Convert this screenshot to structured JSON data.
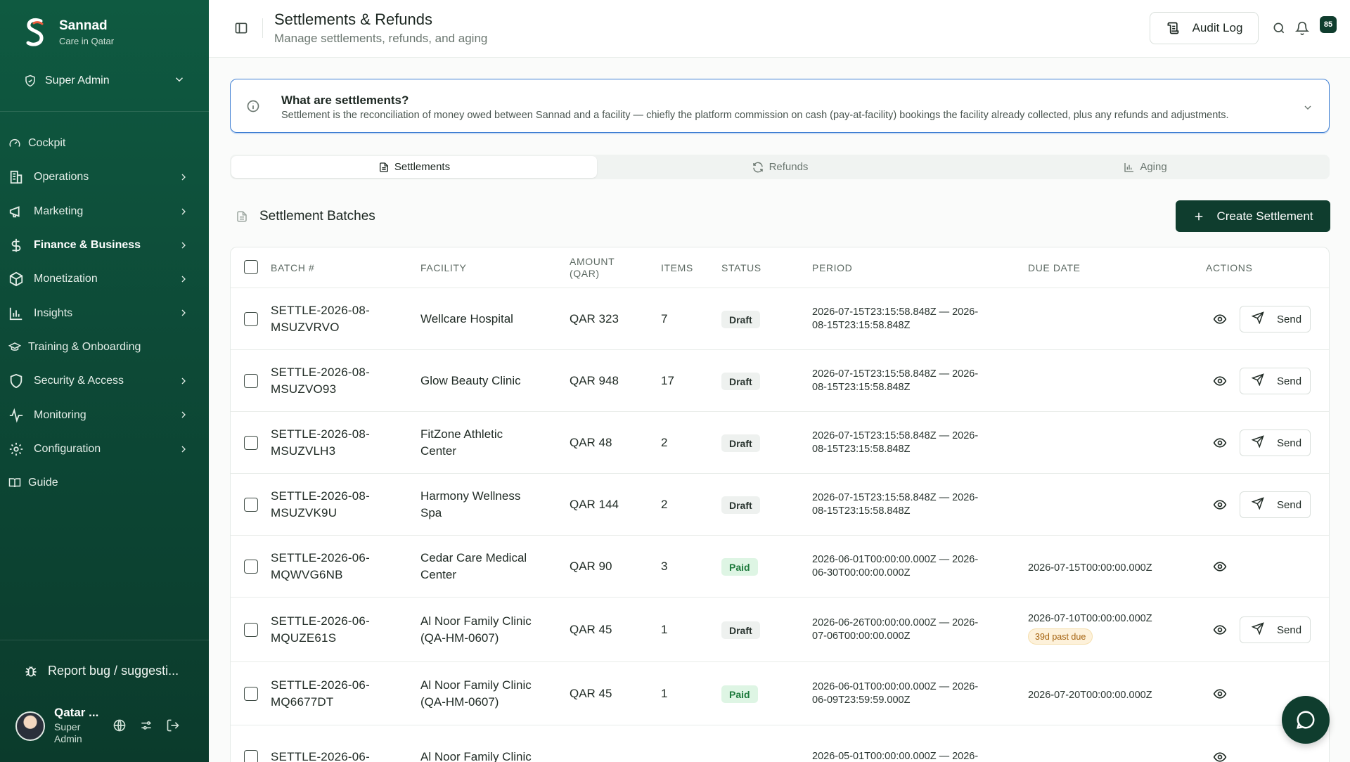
{
  "brand": {
    "name": "Sannad",
    "subtitle": "Care in Qatar"
  },
  "role": {
    "label": "Super Admin"
  },
  "nav": [
    {
      "label": "Cockpit",
      "icon": "gauge-icon",
      "chevron": false
    },
    {
      "label": "Operations",
      "icon": "building-icon",
      "chevron": true
    },
    {
      "label": "Marketing",
      "icon": "megaphone-icon",
      "chevron": true
    },
    {
      "label": "Finance & Business",
      "icon": "dollar-icon",
      "chevron": true,
      "active": true
    },
    {
      "label": "Monetization",
      "icon": "package-icon",
      "chevron": true
    },
    {
      "label": "Insights",
      "icon": "bar-chart-icon",
      "chevron": true
    },
    {
      "label": "Training & Onboarding",
      "icon": "graduation-cap-icon",
      "chevron": false
    },
    {
      "label": "Security & Access",
      "icon": "shield-icon",
      "chevron": true
    },
    {
      "label": "Monitoring",
      "icon": "activity-icon",
      "chevron": true
    },
    {
      "label": "Configuration",
      "icon": "gear-icon",
      "chevron": true
    },
    {
      "label": "Guide",
      "icon": "book-icon",
      "chevron": false
    }
  ],
  "report": {
    "label": "Report bug / suggesti..."
  },
  "user": {
    "name": "Qatar ...",
    "role": "Super Admin"
  },
  "header": {
    "title": "Settlements & Refunds",
    "subtitle": "Manage settlements, refunds, and aging",
    "audit_label": "Audit Log",
    "notification_count": "85"
  },
  "info": {
    "title": "What are settlements?",
    "text": "Settlement is the reconciliation of money owed between Sannad and a facility — chiefly the platform commission on cash (pay-at-facility) bookings the facility already collected, plus any refunds and adjustments."
  },
  "tabs": [
    {
      "label": "Settlements",
      "icon": "file-icon",
      "active": true
    },
    {
      "label": "Refunds",
      "icon": "refresh-icon",
      "active": false
    },
    {
      "label": "Aging",
      "icon": "bar-chart-icon",
      "active": false
    }
  ],
  "section": {
    "title": "Settlement Batches",
    "create_label": "Create Settlement"
  },
  "table": {
    "columns": {
      "batch": "BATCH #",
      "facility": "FACILITY",
      "amount_l1": "AMOUNT",
      "amount_l2": "(QAR)",
      "items": "ITEMS",
      "status": "STATUS",
      "period": "PERIOD",
      "due_date": "DUE DATE",
      "actions": "ACTIONS"
    },
    "send_label": "Send",
    "rows": [
      {
        "batch_l1": "SETTLE-2026-08-",
        "batch_l2": "MSUZVRVO",
        "fac_l1": "Wellcare Hospital",
        "fac_l2": "",
        "amount": "QAR 323",
        "items": "7",
        "status": "Draft",
        "period_l1": "2026-07-15T23:15:58.848Z — 2026-",
        "period_l2": "08-15T23:15:58.848Z",
        "due": "",
        "past_due": "",
        "send": true
      },
      {
        "batch_l1": "SETTLE-2026-08-",
        "batch_l2": "MSUZVO93",
        "fac_l1": "Glow Beauty Clinic",
        "fac_l2": "",
        "amount": "QAR 948",
        "items": "17",
        "status": "Draft",
        "period_l1": "2026-07-15T23:15:58.848Z — 2026-",
        "period_l2": "08-15T23:15:58.848Z",
        "due": "",
        "past_due": "",
        "send": true
      },
      {
        "batch_l1": "SETTLE-2026-08-",
        "batch_l2": "MSUZVLH3",
        "fac_l1": "FitZone Athletic",
        "fac_l2": "Center",
        "amount": "QAR 48",
        "items": "2",
        "status": "Draft",
        "period_l1": "2026-07-15T23:15:58.848Z — 2026-",
        "period_l2": "08-15T23:15:58.848Z",
        "due": "",
        "past_due": "",
        "send": true
      },
      {
        "batch_l1": "SETTLE-2026-08-",
        "batch_l2": "MSUZVK9U",
        "fac_l1": "Harmony Wellness",
        "fac_l2": "Spa",
        "amount": "QAR 144",
        "items": "2",
        "status": "Draft",
        "period_l1": "2026-07-15T23:15:58.848Z — 2026-",
        "period_l2": "08-15T23:15:58.848Z",
        "due": "",
        "past_due": "",
        "send": true
      },
      {
        "batch_l1": "SETTLE-2026-06-",
        "batch_l2": "MQWVG6NB",
        "fac_l1": "Cedar Care Medical",
        "fac_l2": "Center",
        "amount": "QAR 90",
        "items": "3",
        "status": "Paid",
        "period_l1": "2026-06-01T00:00:00.000Z — 2026-",
        "period_l2": "06-30T00:00:00.000Z",
        "due": "2026-07-15T00:00:00.000Z",
        "past_due": "",
        "send": false
      },
      {
        "batch_l1": "SETTLE-2026-06-",
        "batch_l2": "MQUZE61S",
        "fac_l1": "Al Noor Family Clinic",
        "fac_l2": "(QA-HM-0607)",
        "amount": "QAR 45",
        "items": "1",
        "status": "Draft",
        "period_l1": "2026-06-26T00:00:00.000Z — 2026-",
        "period_l2": "07-06T00:00:00.000Z",
        "due": "2026-07-10T00:00:00.000Z",
        "past_due": "39d past due",
        "send": true
      },
      {
        "batch_l1": "SETTLE-2026-06-",
        "batch_l2": "MQ6677DT",
        "fac_l1": "Al Noor Family Clinic",
        "fac_l2": "(QA-HM-0607)",
        "amount": "QAR 45",
        "items": "1",
        "status": "Paid",
        "period_l1": "2026-06-01T00:00:00.000Z — 2026-",
        "period_l2": "06-09T23:59:59.000Z",
        "due": "2026-07-20T00:00:00.000Z",
        "past_due": "",
        "send": false
      },
      {
        "batch_l1": "SETTLE-2026-06-",
        "batch_l2": "",
        "fac_l1": "Al Noor Family Clinic",
        "fac_l2": "",
        "amount": "",
        "items": "",
        "status": "",
        "period_l1": "2026-05-01T00:00:00.000Z — 2026-",
        "period_l2": "",
        "due": "",
        "past_due": "",
        "send": false
      }
    ]
  }
}
